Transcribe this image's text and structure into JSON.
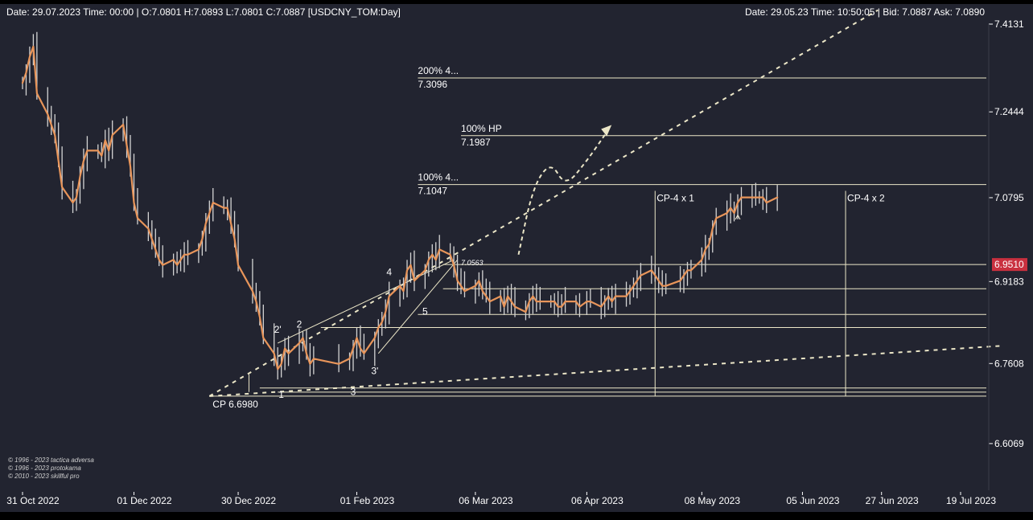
{
  "header": {
    "left": "Date: 29.07.2023 Time: 00:00 | O:7.0801 H:7.0893 L:7.0801 C:7.0887 [USDCNY_TOM:Day]",
    "right": "Date: 29.05.23 Time: 10:50:05 | Bid: 7.0887 Ask: 7.0890"
  },
  "copyright": [
    "© 1996 - 2023 tactica adversa",
    "© 1996 - 2023 protokama",
    "© 2010 - 2023 skillful pro"
  ],
  "colors": {
    "background": "#222430",
    "candle": "#d4d4d4",
    "smooth_line": "#e8955a",
    "guide_line": "#ece7c8",
    "price_badge": "#c9303f",
    "text": "#ffffff"
  },
  "chart_data": {
    "type": "line",
    "instrument": "USDCNY_TOM:Day",
    "title": "",
    "xlabel": "",
    "ylabel": "",
    "ylim": [
      6.53,
      7.44
    ],
    "y_ticks": [
      "7.4131",
      "7.2444",
      "7.0795",
      "6.9183",
      "6.7608",
      "6.6069"
    ],
    "x_ticks": [
      "31 Oct 2022",
      "01 Dec 2022",
      "30 Dec 2022",
      "01 Feb 2023",
      "06 Mar 2023",
      "06 Apr 2023",
      "08 May 2023",
      "05 Jun 2023",
      "27 Jun 2023",
      "19 Jul 2023"
    ],
    "x_tick_dates": [
      "2022-10-31",
      "2022-12-01",
      "2022-12-30",
      "2023-02-01",
      "2023-03-06",
      "2023-04-06",
      "2023-05-08",
      "2023-06-05",
      "2023-06-27",
      "2023-07-19"
    ],
    "current_price": "6.9510",
    "grid": false,
    "series": [
      {
        "values": [
          [
            "2022-10-31",
            7.3
          ],
          [
            "2022-11-01",
            7.32
          ],
          [
            "2022-11-02",
            7.35
          ],
          [
            "2022-11-03",
            7.37
          ],
          [
            "2022-11-04",
            7.28
          ],
          [
            "2022-11-07",
            7.24
          ],
          [
            "2022-11-08",
            7.22
          ],
          [
            "2022-11-09",
            7.2
          ],
          [
            "2022-11-10",
            7.15
          ],
          [
            "2022-11-11",
            7.1
          ],
          [
            "2022-11-14",
            7.07
          ],
          [
            "2022-11-15",
            7.08
          ],
          [
            "2022-11-16",
            7.12
          ],
          [
            "2022-11-17",
            7.15
          ],
          [
            "2022-11-18",
            7.17
          ],
          [
            "2022-11-21",
            7.17
          ],
          [
            "2022-11-22",
            7.16
          ],
          [
            "2022-11-23",
            7.19
          ],
          [
            "2022-11-24",
            7.17
          ],
          [
            "2022-11-25",
            7.2
          ],
          [
            "2022-11-28",
            7.22
          ],
          [
            "2022-11-29",
            7.18
          ],
          [
            "2022-11-30",
            7.14
          ],
          [
            "2022-12-01",
            7.07
          ],
          [
            "2022-12-02",
            7.04
          ],
          [
            "2022-12-05",
            7.02
          ],
          [
            "2022-12-06",
            7.0
          ],
          [
            "2022-12-07",
            6.98
          ],
          [
            "2022-12-08",
            6.96
          ],
          [
            "2022-12-09",
            6.95
          ],
          [
            "2022-12-12",
            6.96
          ],
          [
            "2022-12-13",
            6.95
          ],
          [
            "2022-12-14",
            6.96
          ],
          [
            "2022-12-15",
            6.97
          ],
          [
            "2022-12-16",
            6.97
          ],
          [
            "2022-12-19",
            6.98
          ],
          [
            "2022-12-20",
            7.0
          ],
          [
            "2022-12-21",
            7.03
          ],
          [
            "2022-12-22",
            7.05
          ],
          [
            "2022-12-23",
            7.07
          ],
          [
            "2022-12-26",
            7.06
          ],
          [
            "2022-12-27",
            7.06
          ],
          [
            "2022-12-28",
            7.03
          ],
          [
            "2022-12-29",
            7.0
          ],
          [
            "2022-12-30",
            6.95
          ],
          [
            "2023-01-03",
            6.9
          ],
          [
            "2023-01-04",
            6.88
          ],
          [
            "2023-01-05",
            6.85
          ],
          [
            "2023-01-06",
            6.81
          ],
          [
            "2023-01-09",
            6.78
          ],
          [
            "2023-01-10",
            6.75
          ],
          [
            "2023-01-11",
            6.76
          ],
          [
            "2023-01-12",
            6.79
          ],
          [
            "2023-01-13",
            6.78
          ],
          [
            "2023-01-16",
            6.8
          ],
          [
            "2023-01-17",
            6.81
          ],
          [
            "2023-01-18",
            6.78
          ],
          [
            "2023-01-19",
            6.76
          ],
          [
            "2023-01-20",
            6.77
          ],
          [
            "2023-01-27",
            6.76
          ],
          [
            "2023-01-30",
            6.77
          ],
          [
            "2023-01-31",
            6.79
          ],
          [
            "2023-02-01",
            6.81
          ],
          [
            "2023-02-02",
            6.79
          ],
          [
            "2023-02-03",
            6.78
          ],
          [
            "2023-02-06",
            6.81
          ],
          [
            "2023-02-07",
            6.83
          ],
          [
            "2023-02-08",
            6.84
          ],
          [
            "2023-02-09",
            6.86
          ],
          [
            "2023-02-10",
            6.89
          ],
          [
            "2023-02-13",
            6.91
          ],
          [
            "2023-02-14",
            6.9
          ],
          [
            "2023-02-15",
            6.94
          ],
          [
            "2023-02-16",
            6.95
          ],
          [
            "2023-02-17",
            6.92
          ],
          [
            "2023-02-20",
            6.94
          ],
          [
            "2023-02-21",
            6.96
          ],
          [
            "2023-02-22",
            6.97
          ],
          [
            "2023-02-23",
            6.96
          ],
          [
            "2023-02-24",
            6.98
          ],
          [
            "2023-02-27",
            6.97
          ],
          [
            "2023-02-28",
            6.95
          ],
          [
            "2023-03-01",
            6.92
          ],
          [
            "2023-03-02",
            6.91
          ],
          [
            "2023-03-03",
            6.9
          ],
          [
            "2023-03-06",
            6.91
          ],
          [
            "2023-03-07",
            6.92
          ],
          [
            "2023-03-08",
            6.9
          ],
          [
            "2023-03-09",
            6.89
          ],
          [
            "2023-03-10",
            6.88
          ],
          [
            "2023-03-13",
            6.89
          ],
          [
            "2023-03-14",
            6.87
          ],
          [
            "2023-03-15",
            6.89
          ],
          [
            "2023-03-16",
            6.88
          ],
          [
            "2023-03-17",
            6.87
          ],
          [
            "2023-03-20",
            6.86
          ],
          [
            "2023-03-21",
            6.88
          ],
          [
            "2023-03-22",
            6.89
          ],
          [
            "2023-03-23",
            6.88
          ],
          [
            "2023-03-24",
            6.88
          ],
          [
            "2023-03-27",
            6.88
          ],
          [
            "2023-03-28",
            6.88
          ],
          [
            "2023-03-29",
            6.87
          ],
          [
            "2023-03-30",
            6.87
          ],
          [
            "2023-03-31",
            6.88
          ],
          [
            "2023-04-03",
            6.88
          ],
          [
            "2023-04-04",
            6.87
          ],
          [
            "2023-04-06",
            6.88
          ],
          [
            "2023-04-07",
            6.88
          ],
          [
            "2023-04-10",
            6.87
          ],
          [
            "2023-04-11",
            6.88
          ],
          [
            "2023-04-12",
            6.89
          ],
          [
            "2023-04-13",
            6.88
          ],
          [
            "2023-04-14",
            6.89
          ],
          [
            "2023-04-17",
            6.89
          ],
          [
            "2023-04-18",
            6.9
          ],
          [
            "2023-04-19",
            6.91
          ],
          [
            "2023-04-20",
            6.92
          ],
          [
            "2023-04-21",
            6.93
          ],
          [
            "2023-04-24",
            6.94
          ],
          [
            "2023-04-25",
            6.93
          ],
          [
            "2023-04-26",
            6.92
          ],
          [
            "2023-04-27",
            6.91
          ],
          [
            "2023-04-28",
            6.91
          ],
          [
            "2023-05-02",
            6.92
          ],
          [
            "2023-05-03",
            6.93
          ],
          [
            "2023-05-04",
            6.94
          ],
          [
            "2023-05-05",
            6.94
          ],
          [
            "2023-05-08",
            6.96
          ],
          [
            "2023-05-09",
            6.98
          ],
          [
            "2023-05-10",
            6.99
          ],
          [
            "2023-05-11",
            7.02
          ],
          [
            "2023-05-12",
            7.04
          ],
          [
            "2023-05-15",
            7.05
          ],
          [
            "2023-05-16",
            7.06
          ],
          [
            "2023-05-17",
            7.05
          ],
          [
            "2023-05-18",
            7.07
          ],
          [
            "2023-05-19",
            7.08
          ],
          [
            "2023-05-22",
            7.08
          ],
          [
            "2023-05-23",
            7.08
          ],
          [
            "2023-05-24",
            7.08
          ],
          [
            "2023-05-25",
            7.08
          ],
          [
            "2023-05-26",
            7.07
          ],
          [
            "2023-05-29",
            7.08
          ]
        ]
      }
    ],
    "levels": [
      {
        "name": "200%_4",
        "label": "200%  4...",
        "value": 7.3096,
        "value_label": "7.3096",
        "x_start": "2023-02-18"
      },
      {
        "name": "100%_hp",
        "label": "100% HP",
        "value": 7.1987,
        "value_label": "7.1987",
        "x_start": "2023-03-02"
      },
      {
        "name": "100%_4",
        "label": "100%  4...",
        "value": 7.1047,
        "value_label": "7.1047",
        "x_start": "2023-02-18"
      },
      {
        "name": "current",
        "value": 6.951,
        "x_start": "2023-02-25"
      },
      {
        "name": "mid",
        "value": 6.9045,
        "x_start": "2023-02-25"
      },
      {
        "name": "wave5",
        "value": 6.855,
        "x_start": "2023-02-18"
      },
      {
        "name": "low",
        "value": 6.83,
        "x_start": "2023-01-22"
      },
      {
        "name": "base1",
        "value": 6.7137,
        "x_start": "2023-01-05"
      },
      {
        "name": "base2",
        "value": 6.7058,
        "x_start": "2023-01-10"
      },
      {
        "name": "cp",
        "label": "CP  6.6980",
        "value": 6.698,
        "x_start": "2022-12-22"
      }
    ],
    "cp_lines": [
      {
        "label": "CP-4 x 1",
        "date": "2023-04-25"
      },
      {
        "label": "CP-4 x 2",
        "date": "2023-06-17"
      }
    ],
    "wave_labels": [
      {
        "label": "1",
        "date": "2023-01-11",
        "value": 6.695
      },
      {
        "label": "2'",
        "date": "2023-01-10",
        "value": 6.82
      },
      {
        "label": "2",
        "date": "2023-01-16",
        "value": 6.83
      },
      {
        "label": "3",
        "date": "2023-01-31",
        "value": 6.7
      },
      {
        "label": "3'",
        "date": "2023-02-06",
        "value": 6.74
      },
      {
        "label": "4",
        "date": "2023-02-10",
        "value": 6.93
      },
      {
        "label": "5",
        "date": "2023-02-20",
        "value": 6.855
      },
      {
        "label": "^",
        "date": "2023-05-18",
        "value": 7.03
      }
    ],
    "annotations": [
      {
        "label": "7.0563",
        "date": "2023-03-02",
        "value": 6.95
      }
    ],
    "trendlines": [
      {
        "from": [
          "2022-12-22",
          6.698
        ],
        "to": [
          "2023-07-31",
          6.795
        ],
        "style": "dashed"
      },
      {
        "from": [
          "2022-12-22",
          6.698
        ],
        "to": [
          "2023-06-26",
          7.44
        ],
        "style": "dashed"
      }
    ],
    "projection": [
      [
        "2023-03-18",
        6.97
      ],
      [
        "2023-03-22",
        7.1
      ],
      [
        "2023-03-27",
        7.15
      ],
      [
        "2023-03-31",
        7.1
      ],
      [
        "2023-04-06",
        7.15
      ],
      [
        "2023-04-12",
        7.21
      ]
    ]
  }
}
